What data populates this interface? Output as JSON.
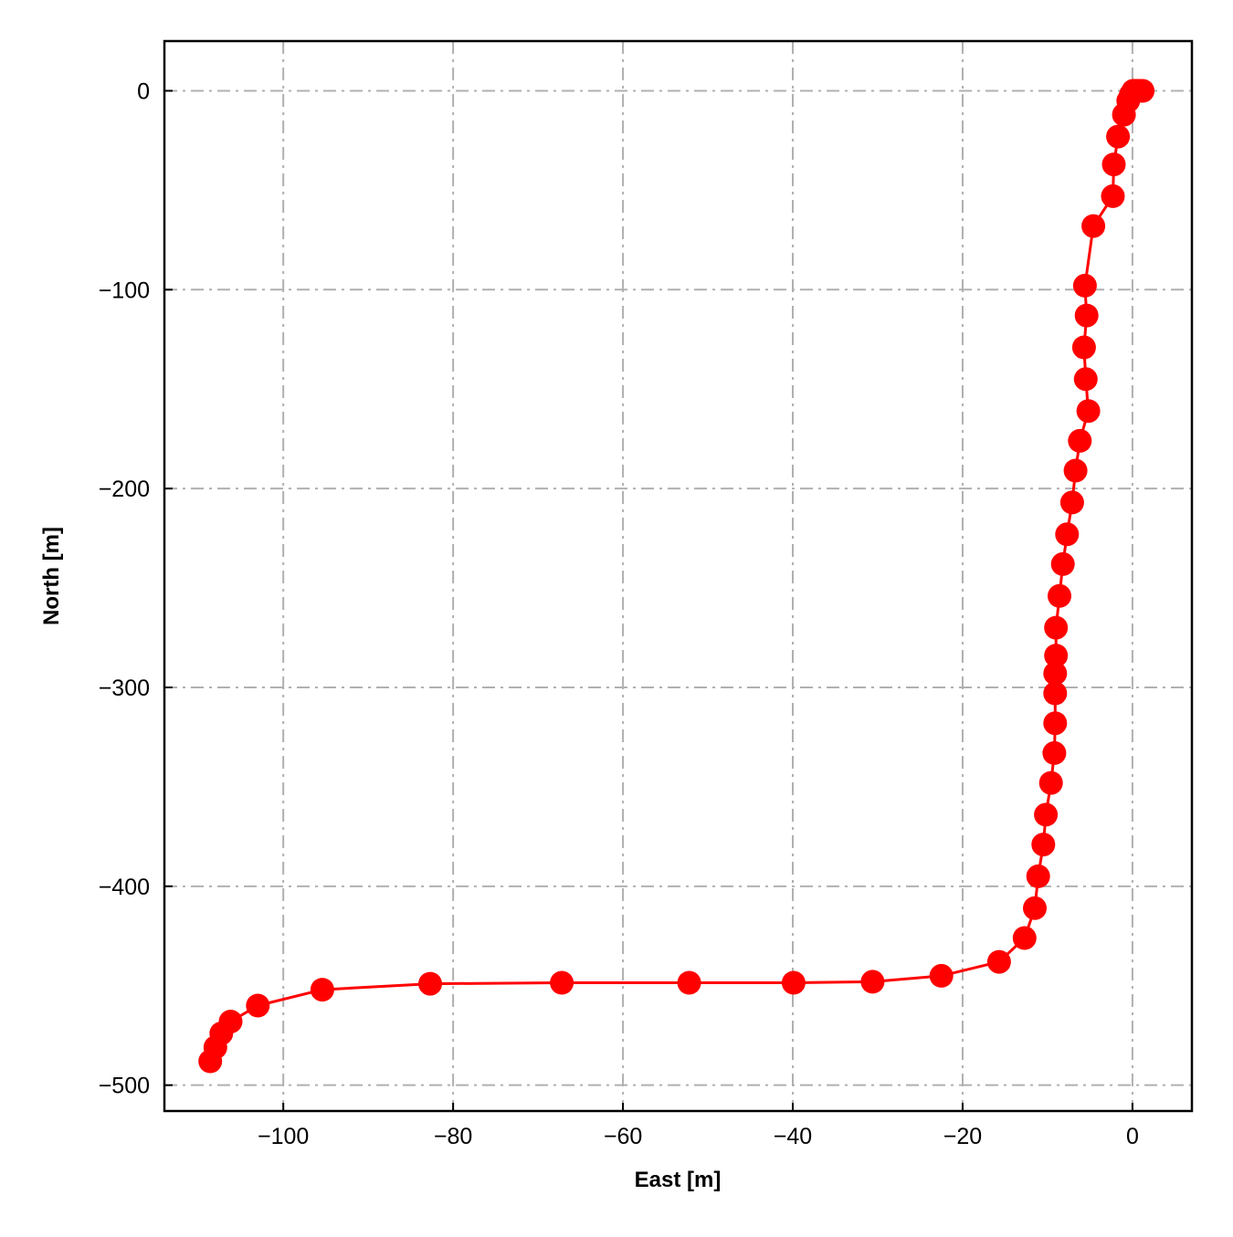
{
  "chart_data": {
    "type": "line",
    "title": "",
    "xlabel": "East [m]",
    "ylabel": "North [m]",
    "xlim": [
      -114,
      7
    ],
    "ylim": [
      -513,
      25
    ],
    "xticks": [
      -100,
      -80,
      -60,
      -40,
      -20,
      0
    ],
    "yticks": [
      0,
      -100,
      -200,
      -300,
      -400,
      -500
    ],
    "xtick_labels": [
      "−100",
      "−80",
      "−60",
      "−40",
      "−20",
      "0"
    ],
    "ytick_labels": [
      "0",
      "−100",
      "−200",
      "−300",
      "−400",
      "−500"
    ],
    "grid": true,
    "legend": false,
    "series": [
      {
        "color": "#ff0000",
        "marker": "circle",
        "x": [
          1.2,
          0.8,
          0.5,
          0.3,
          0.1,
          -0.2,
          -0.5,
          -1.0,
          -1.7,
          -2.2,
          -2.3,
          -4.6,
          -5.6,
          -5.4,
          -5.7,
          -5.5,
          -5.2,
          -6.2,
          -6.7,
          -7.1,
          -7.7,
          -8.2,
          -8.6,
          -9.0,
          -9.0,
          -9.1,
          -9.1,
          -9.1,
          -9.2,
          -9.6,
          -10.2,
          -10.5,
          -11.1,
          -11.5,
          -12.7,
          -15.7,
          -22.5,
          -30.6,
          -39.9,
          -52.2,
          -67.2,
          -82.7,
          -95.4,
          -103.0,
          -106.2,
          -107.3,
          -108.0,
          -108.6
        ],
        "y": [
          0,
          0,
          0,
          0,
          0,
          -2,
          -5,
          -12,
          -23,
          -37,
          -53,
          -68,
          -98,
          -113,
          -129,
          -145,
          -161,
          -176,
          -191,
          -207,
          -223,
          -238,
          -254,
          -270,
          -284,
          -293,
          -303,
          -318,
          -333,
          -348,
          -364,
          -379,
          -395,
          -411,
          -426,
          -438,
          -445,
          -448,
          -448.5,
          -448.5,
          -448.5,
          -449,
          -452,
          -460,
          -468,
          -474,
          -481,
          -488
        ]
      }
    ]
  }
}
